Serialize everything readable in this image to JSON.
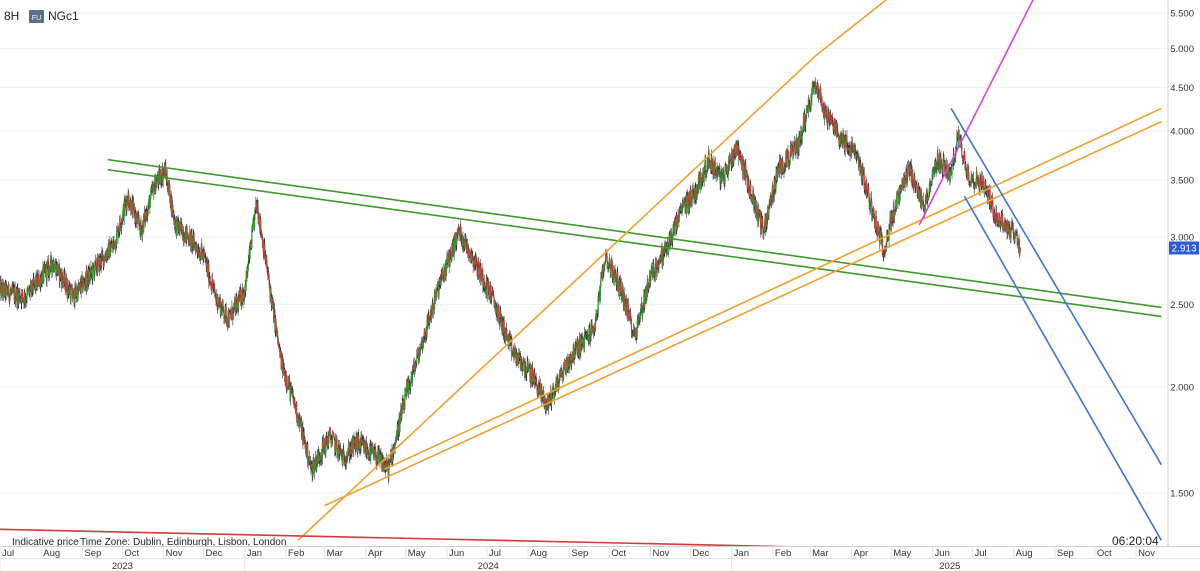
{
  "header": {
    "interval": "8H",
    "instrument_badge": "FU",
    "symbol": "NGc1"
  },
  "footer": {
    "indicative_label": "Indicative price",
    "timezone_label": "Time Zone: Dublin, Edinburgh, Lisbon, London",
    "clock": "06:20:04"
  },
  "colors": {
    "up_candle": "#2e9e2e",
    "down_candle": "#d43b3b",
    "price_badge": "#2c5bd6",
    "green_line": "#3a9a2a",
    "orange_line": "#f0a030",
    "magenta_line": "#e040e0",
    "blue_line": "#3b74d6",
    "red_line": "#d43b3b"
  },
  "chart_data": {
    "type": "candlestick",
    "scale": "log",
    "ylim": [
      1.3,
      5.7
    ],
    "y_ticks": [
      "5.500",
      "5.000",
      "4.500",
      "4.000",
      "3.500",
      "3.000",
      "2.500",
      "2.000",
      "1.500"
    ],
    "y_tick_values": [
      5.5,
      5.0,
      4.5,
      4.0,
      3.5,
      3.0,
      2.5,
      2.0,
      1.5
    ],
    "last_price": "2.913",
    "last_price_value": 2.913,
    "x_range": [
      "2023-07-01",
      "2025-11-25"
    ],
    "month_ticks": [
      {
        "label": "Jul",
        "date": "2023-07-01"
      },
      {
        "label": "Aug",
        "date": "2023-08-01"
      },
      {
        "label": "Sep",
        "date": "2023-09-01"
      },
      {
        "label": "Oct",
        "date": "2023-10-01"
      },
      {
        "label": "Nov",
        "date": "2023-11-01"
      },
      {
        "label": "Dec",
        "date": "2023-12-01"
      },
      {
        "label": "Jan",
        "date": "2024-01-01"
      },
      {
        "label": "Feb",
        "date": "2024-02-01"
      },
      {
        "label": "Mar",
        "date": "2024-03-01"
      },
      {
        "label": "Apr",
        "date": "2024-04-01"
      },
      {
        "label": "May",
        "date": "2024-05-01"
      },
      {
        "label": "Jun",
        "date": "2024-06-01"
      },
      {
        "label": "Jul",
        "date": "2024-07-01"
      },
      {
        "label": "Aug",
        "date": "2024-08-01"
      },
      {
        "label": "Sep",
        "date": "2024-09-01"
      },
      {
        "label": "Oct",
        "date": "2024-10-01"
      },
      {
        "label": "Nov",
        "date": "2024-11-01"
      },
      {
        "label": "Dec",
        "date": "2024-12-01"
      },
      {
        "label": "Jan",
        "date": "2025-01-01"
      },
      {
        "label": "Feb",
        "date": "2025-02-01"
      },
      {
        "label": "Mar",
        "date": "2025-03-01"
      },
      {
        "label": "Apr",
        "date": "2025-04-01"
      },
      {
        "label": "May",
        "date": "2025-05-01"
      },
      {
        "label": "Jun",
        "date": "2025-06-01"
      },
      {
        "label": "Jul",
        "date": "2025-07-01"
      },
      {
        "label": "Aug",
        "date": "2025-08-01"
      },
      {
        "label": "Sep",
        "date": "2025-09-01"
      },
      {
        "label": "Oct",
        "date": "2025-10-01"
      },
      {
        "label": "Nov",
        "date": "2025-11-01"
      }
    ],
    "year_ticks": [
      {
        "label": "2023",
        "date": "2023-07-01",
        "end": "2024-01-01"
      },
      {
        "label": "2024",
        "date": "2024-01-01",
        "end": "2025-01-01"
      },
      {
        "label": "2025",
        "date": "2025-01-01",
        "end": "2025-11-25"
      }
    ],
    "price_path": [
      [
        "2023-07-01",
        2.6
      ],
      [
        "2023-07-20",
        2.55
      ],
      [
        "2023-08-10",
        2.8
      ],
      [
        "2023-08-25",
        2.55
      ],
      [
        "2023-09-10",
        2.75
      ],
      [
        "2023-09-25",
        2.95
      ],
      [
        "2023-10-05",
        3.35
      ],
      [
        "2023-10-15",
        3.05
      ],
      [
        "2023-10-25",
        3.45
      ],
      [
        "2023-11-02",
        3.6
      ],
      [
        "2023-11-10",
        3.1
      ],
      [
        "2023-11-20",
        3.0
      ],
      [
        "2023-12-01",
        2.85
      ],
      [
        "2023-12-10",
        2.55
      ],
      [
        "2023-12-20",
        2.4
      ],
      [
        "2024-01-01",
        2.6
      ],
      [
        "2024-01-10",
        3.3
      ],
      [
        "2024-01-20",
        2.6
      ],
      [
        "2024-01-28",
        2.15
      ],
      [
        "2024-02-10",
        1.85
      ],
      [
        "2024-02-20",
        1.6
      ],
      [
        "2024-03-05",
        1.75
      ],
      [
        "2024-03-15",
        1.65
      ],
      [
        "2024-03-25",
        1.72
      ],
      [
        "2024-04-10",
        1.65
      ],
      [
        "2024-04-18",
        1.6
      ],
      [
        "2024-05-01",
        1.95
      ],
      [
        "2024-05-15",
        2.3
      ],
      [
        "2024-05-25",
        2.6
      ],
      [
        "2024-06-10",
        3.05
      ],
      [
        "2024-06-20",
        2.85
      ],
      [
        "2024-07-05",
        2.55
      ],
      [
        "2024-07-20",
        2.2
      ],
      [
        "2024-08-05",
        2.05
      ],
      [
        "2024-08-15",
        1.9
      ],
      [
        "2024-08-28",
        2.1
      ],
      [
        "2024-09-05",
        2.2
      ],
      [
        "2024-09-20",
        2.35
      ],
      [
        "2024-09-28",
        2.85
      ],
      [
        "2024-10-10",
        2.6
      ],
      [
        "2024-10-20",
        2.3
      ],
      [
        "2024-11-01",
        2.7
      ],
      [
        "2024-11-15",
        2.95
      ],
      [
        "2024-11-25",
        3.25
      ],
      [
        "2024-12-05",
        3.4
      ],
      [
        "2024-12-15",
        3.7
      ],
      [
        "2024-12-25",
        3.5
      ],
      [
        "2025-01-05",
        3.85
      ],
      [
        "2025-01-15",
        3.4
      ],
      [
        "2025-01-25",
        3.05
      ],
      [
        "2025-02-05",
        3.6
      ],
      [
        "2025-02-20",
        3.85
      ],
      [
        "2025-03-05",
        4.6
      ],
      [
        "2025-03-12",
        4.2
      ],
      [
        "2025-03-25",
        3.9
      ],
      [
        "2025-04-05",
        3.75
      ],
      [
        "2025-04-15",
        3.3
      ],
      [
        "2025-04-25",
        2.9
      ],
      [
        "2025-05-05",
        3.3
      ],
      [
        "2025-05-15",
        3.6
      ],
      [
        "2025-05-25",
        3.25
      ],
      [
        "2025-06-05",
        3.7
      ],
      [
        "2025-06-15",
        3.55
      ],
      [
        "2025-06-20",
        3.95
      ],
      [
        "2025-06-28",
        3.55
      ],
      [
        "2025-07-10",
        3.45
      ],
      [
        "2025-07-20",
        3.15
      ],
      [
        "2025-08-01",
        3.05
      ],
      [
        "2025-08-06",
        2.913
      ]
    ],
    "trendlines": [
      {
        "color": "green",
        "p1": [
          "2023-09-20",
          3.7
        ],
        "p2": [
          "2025-11-20",
          2.48
        ]
      },
      {
        "color": "green",
        "p1": [
          "2023-09-20",
          3.6
        ],
        "p2": [
          "2025-11-20",
          2.42
        ]
      },
      {
        "color": "orange",
        "p1": [
          "2024-02-10",
          1.32
        ],
        "p2": [
          "2025-03-05",
          4.9
        ]
      },
      {
        "color": "orange",
        "p1": [
          "2025-03-05",
          4.9
        ],
        "p2": [
          "2025-06-01",
          6.3
        ]
      },
      {
        "color": "orange",
        "p1": [
          "2024-04-15",
          1.6
        ],
        "p2": [
          "2025-11-20",
          4.25
        ]
      },
      {
        "color": "orange",
        "p1": [
          "2024-03-01",
          1.45
        ],
        "p2": [
          "2025-11-20",
          4.1
        ]
      },
      {
        "color": "magenta",
        "p1": [
          "2025-05-22",
          3.1
        ],
        "p2": [
          "2025-08-25",
          6.1
        ]
      },
      {
        "color": "blue",
        "p1": [
          "2025-06-15",
          4.25
        ],
        "p2": [
          "2025-11-20",
          1.62
        ]
      },
      {
        "color": "blue",
        "p1": [
          "2025-06-25",
          3.35
        ],
        "p2": [
          "2025-11-20",
          1.32
        ]
      },
      {
        "color": "red",
        "p1": [
          "2023-07-01",
          1.36
        ],
        "p2": [
          "2025-08-01",
          1.28
        ]
      }
    ]
  }
}
